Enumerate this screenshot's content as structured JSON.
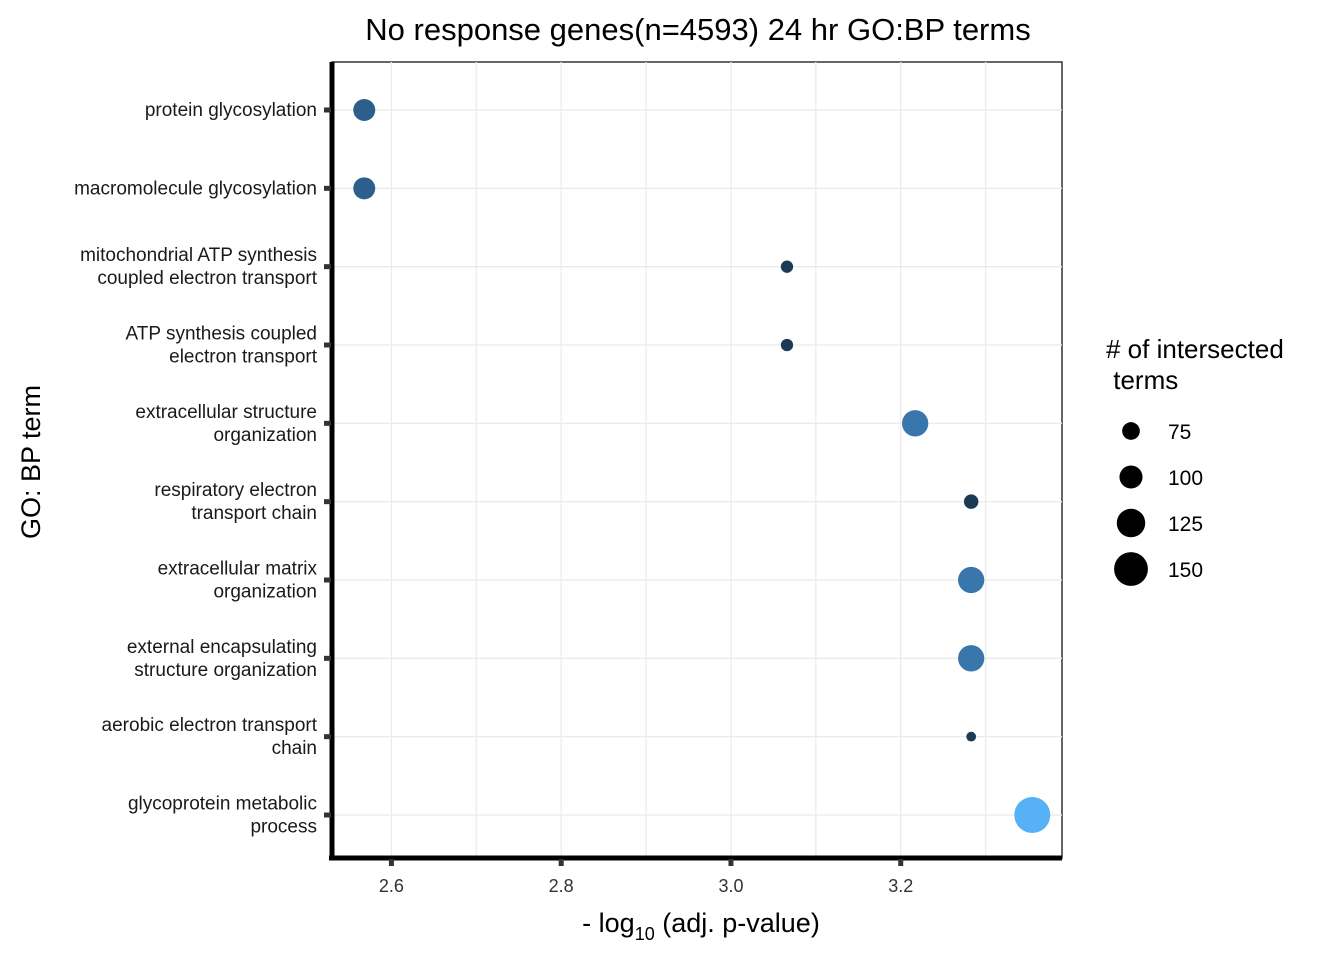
{
  "chart_data": {
    "type": "scatter",
    "title": "No response genes(n=4593) 24 hr GO:BP terms",
    "xlabel": {
      "prefix": "- log",
      "subscript": "10",
      "suffix": " (adj. p-value)"
    },
    "ylabel": "GO: BP term",
    "xlim": [
      2.53,
      3.39
    ],
    "x_ticks": [
      2.6,
      2.8,
      3.0,
      3.2
    ],
    "x_tick_labels": [
      "2.6",
      "2.8",
      "3.0",
      "3.2"
    ],
    "grid": true,
    "legend": {
      "title_lines": [
        "# of intersected",
        " terms"
      ],
      "placement": "right",
      "sizes": [
        75,
        100,
        125,
        150
      ],
      "labels": [
        "75",
        "100",
        "125",
        "150"
      ]
    },
    "points": [
      {
        "term_lines": [
          "protein glycosylation"
        ],
        "x": 2.568,
        "size": 95,
        "color": "#2d5f8c"
      },
      {
        "term_lines": [
          "macromolecule glycosylation"
        ],
        "x": 2.568,
        "size": 95,
        "color": "#2d5f8c"
      },
      {
        "term_lines": [
          "mitochondrial ATP synthesis",
          "coupled electron transport"
        ],
        "x": 3.066,
        "size": 50,
        "color": "#1b3a56"
      },
      {
        "term_lines": [
          "ATP synthesis coupled",
          "electron transport"
        ],
        "x": 3.066,
        "size": 50,
        "color": "#1b3a56"
      },
      {
        "term_lines": [
          "extracellular structure",
          "organization"
        ],
        "x": 3.217,
        "size": 115,
        "color": "#3976ab"
      },
      {
        "term_lines": [
          "respiratory electron",
          "transport chain"
        ],
        "x": 3.283,
        "size": 60,
        "color": "#1b3a56"
      },
      {
        "term_lines": [
          "extracellular matrix",
          "organization"
        ],
        "x": 3.283,
        "size": 115,
        "color": "#3976ab"
      },
      {
        "term_lines": [
          "external encapsulating",
          "structure organization"
        ],
        "x": 3.283,
        "size": 115,
        "color": "#3976ab"
      },
      {
        "term_lines": [
          "aerobic electron transport",
          "chain"
        ],
        "x": 3.283,
        "size": 38,
        "color": "#1b3a56"
      },
      {
        "term_lines": [
          "glycoprotein metabolic",
          "process"
        ],
        "x": 3.355,
        "size": 160,
        "color": "#56b1f7"
      }
    ]
  }
}
